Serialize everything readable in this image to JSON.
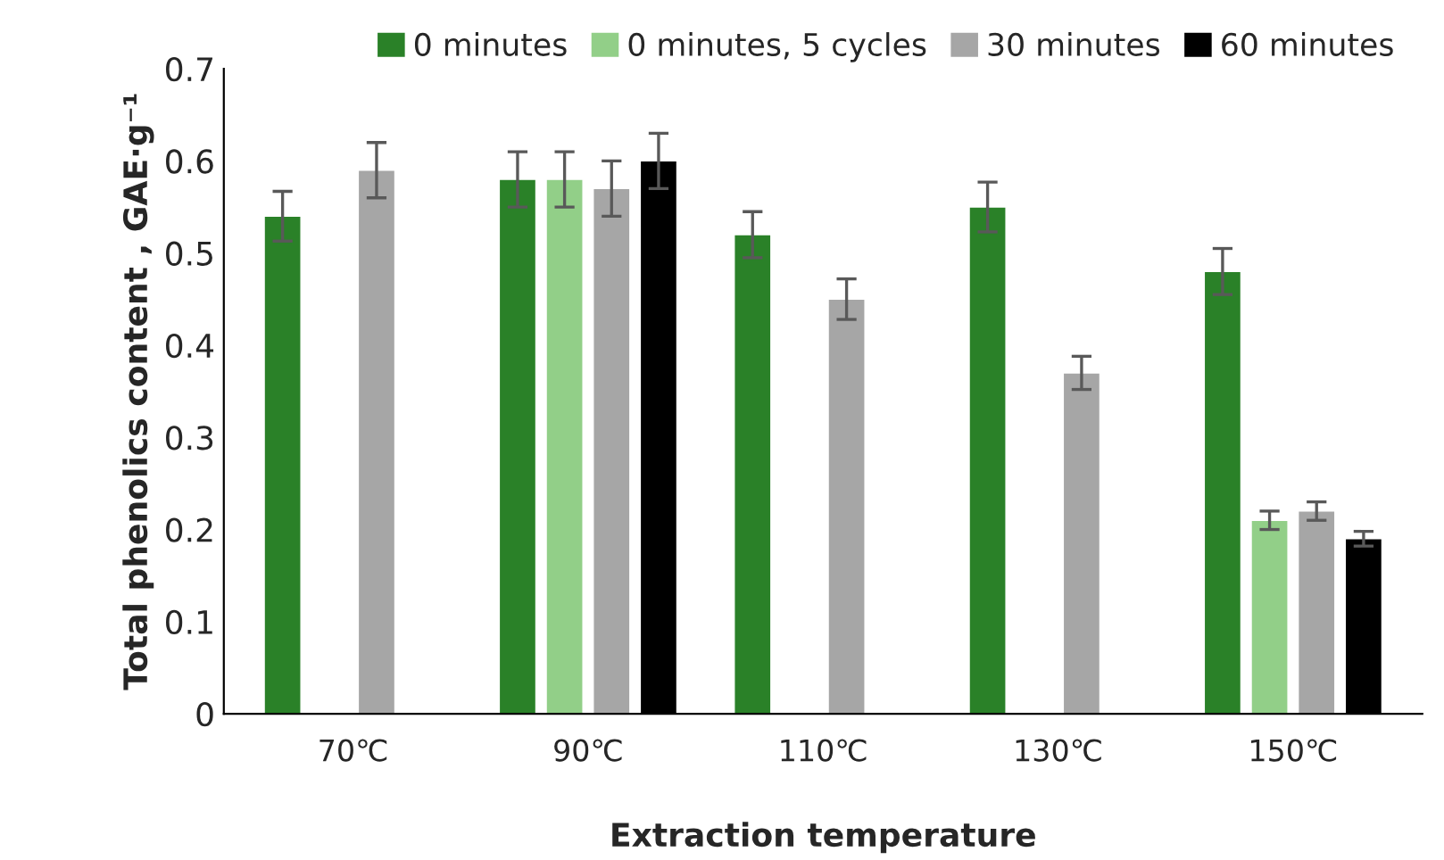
{
  "chart_data": {
    "type": "bar",
    "xlabel": "Extraction temperature",
    "ylabel": "Total phenolics content , GAE·g⁻¹",
    "categories": [
      "70℃",
      "90℃",
      "110℃",
      "130℃",
      "150℃"
    ],
    "series": [
      {
        "name": "0 minutes",
        "color": "#2a8128",
        "values": [
          0.54,
          0.58,
          0.52,
          0.55,
          0.48
        ],
        "errors": [
          0.027,
          0.03,
          0.025,
          0.027,
          0.025
        ]
      },
      {
        "name": "0 minutes, 5 cycles",
        "color": "#92cf88",
        "values": [
          null,
          0.58,
          null,
          null,
          0.21
        ],
        "errors": [
          null,
          0.03,
          null,
          null,
          0.01
        ]
      },
      {
        "name": "30 minutes",
        "color": "#a6a6a6",
        "values": [
          0.59,
          0.57,
          0.45,
          0.37,
          0.22
        ],
        "errors": [
          0.03,
          0.03,
          0.022,
          0.018,
          0.01
        ]
      },
      {
        "name": "60 minutes",
        "color": "#000000",
        "values": [
          null,
          0.6,
          null,
          null,
          0.19
        ],
        "errors": [
          null,
          0.03,
          null,
          null,
          0.008
        ]
      }
    ],
    "ylim": [
      0,
      0.7
    ],
    "yticks": [
      0,
      0.1,
      0.2,
      0.3,
      0.4,
      0.5,
      0.6,
      0.7
    ],
    "grid": false,
    "legend": "top right"
  }
}
